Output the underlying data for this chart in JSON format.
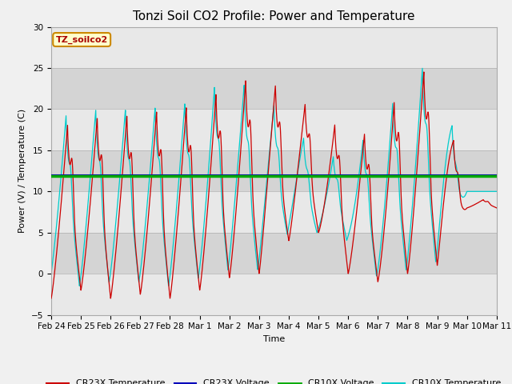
{
  "title": "Tonzi Soil CO2 Profile: Power and Temperature",
  "xlabel": "Time",
  "ylabel": "Power (V) / Temperature (C)",
  "ylim": [
    -5,
    30
  ],
  "yticks": [
    -5,
    0,
    5,
    10,
    15,
    20,
    25,
    30
  ],
  "bg_color": "#f0f0f0",
  "plot_bg_light": "#f0f0f0",
  "plot_bg_dark": "#dcdcdc",
  "grid_color": "#c8c8c8",
  "cr23x_temp_color": "#cc0000",
  "cr23x_volt_color": "#0000bb",
  "cr10x_volt_color": "#00aa00",
  "cr10x_temp_color": "#00cccc",
  "cr10x_volt_value": 11.85,
  "cr23x_volt_value": 11.95,
  "annotation_text": "TZ_soilco2",
  "annotation_bg": "#ffffcc",
  "annotation_border": "#cc8800",
  "xtick_labels": [
    "Feb 24",
    "Feb 25",
    "Feb 26",
    "Feb 27",
    "Feb 28",
    "Mar 1",
    "Mar 2",
    "Mar 3",
    "Mar 4",
    "Mar 5",
    "Mar 6",
    "Mar 7",
    "Mar 8",
    "Mar 9",
    "Mar 10",
    "Mar 11"
  ],
  "num_days": 15,
  "title_fontsize": 11,
  "legend_fontsize": 8,
  "tick_fontsize": 7.5,
  "ylabel_fontsize": 8,
  "xlabel_fontsize": 8
}
